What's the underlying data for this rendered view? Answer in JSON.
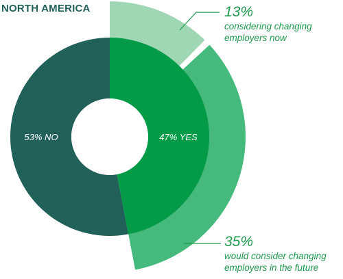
{
  "chart_data": {
    "type": "pie",
    "title": "NORTH AMERICA",
    "slices": [
      {
        "label": "53% NO",
        "value": 53,
        "color": "#22605a"
      },
      {
        "label": "47% YES",
        "value": 47,
        "color": "#039a48"
      }
    ],
    "breakdown": [
      {
        "value": 13,
        "pct_label": "13%",
        "description": "considering changing\nemployers now",
        "color": "#9fd6b4"
      },
      {
        "value": 35,
        "pct_label": "35%",
        "description": "would consider changing\nemployers in the future",
        "color": "#46b97c"
      }
    ]
  }
}
